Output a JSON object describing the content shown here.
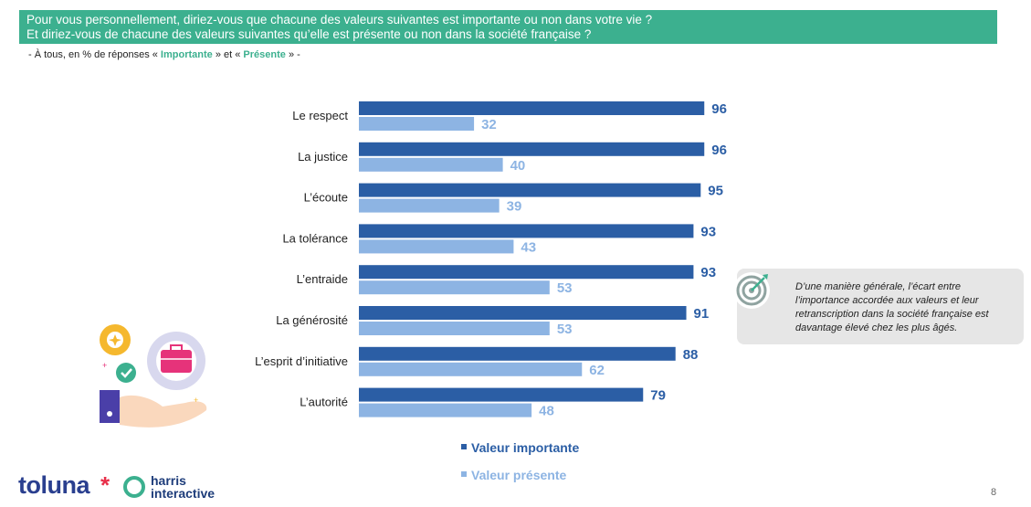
{
  "header": {
    "line1": "Pour vous personnellement, diriez-vous que chacune des valeurs suivantes est importante ou non dans votre vie ?",
    "line2": "Et diriez-vous de chacune des valeurs suivantes qu’elle est présente ou non dans la société française ?"
  },
  "subtitle": {
    "prefix": "- À tous, en % de réponses « ",
    "important": "Importante",
    "middle": " » et « ",
    "present": "Présente",
    "suffix": " » -"
  },
  "chart_data": {
    "type": "bar",
    "orientation": "horizontal",
    "categories": [
      "Le respect",
      "La justice",
      "L’écoute",
      "La tolérance",
      "L’entraide",
      "La générosité",
      "L’esprit d’initiative",
      "L’autorité"
    ],
    "series": [
      {
        "name": "Valeur importante",
        "color": "#2b5ea5",
        "values": [
          96,
          96,
          95,
          93,
          93,
          91,
          88,
          79
        ]
      },
      {
        "name": "Valeur présente",
        "color": "#8db4e3",
        "values": [
          32,
          40,
          39,
          43,
          53,
          53,
          62,
          48
        ]
      }
    ],
    "xlim": [
      0,
      100
    ],
    "legend": "bottom"
  },
  "legend": {
    "important": "Valeur importante",
    "present": "Valeur présente"
  },
  "note": {
    "text": "D’une manière générale, l’écart entre l’importance accordée aux valeurs et leur retranscription dans la société française est davantage élevé chez les plus âgés."
  },
  "logo": {
    "toluna": "toluna",
    "star": "*",
    "harris_line1": "harris",
    "harris_line2": "interactive"
  },
  "page_number": "8",
  "icons": {
    "note": "target-icon",
    "illustration": "hand-gears-briefcase-illustration"
  }
}
